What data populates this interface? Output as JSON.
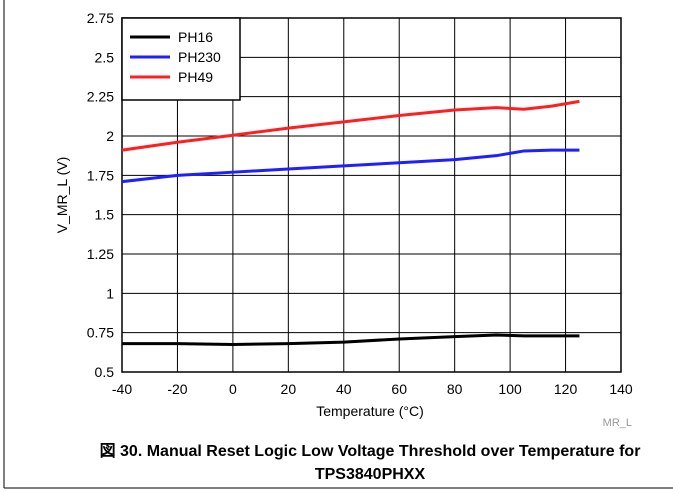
{
  "chart_data": {
    "type": "line",
    "title": "図 30. Manual Reset Logic Low Voltage Threshold over Temperature for TPS3840PHXX",
    "x_label": "Temperature (°C)",
    "y_label": "V_MR_L (V)",
    "annotation": "MR_L",
    "x": [
      -40,
      -20,
      0,
      20,
      40,
      60,
      80,
      95,
      105,
      115,
      125
    ],
    "series": [
      {
        "name": "PH16",
        "color": "#000000",
        "values": [
          0.68,
          0.68,
          0.675,
          0.68,
          0.69,
          0.71,
          0.725,
          0.735,
          0.73,
          0.73,
          0.73
        ]
      },
      {
        "name": "PH230",
        "color": "#1f1fff",
        "values": [
          1.71,
          1.75,
          1.77,
          1.79,
          1.81,
          1.83,
          1.85,
          1.875,
          1.905,
          1.91,
          1.91
        ]
      },
      {
        "name": "PH49",
        "color": "#ff1f1f",
        "values": [
          1.91,
          1.96,
          2.005,
          2.05,
          2.09,
          2.13,
          2.165,
          2.18,
          2.17,
          2.19,
          2.22
        ]
      }
    ],
    "xlim": [
      -40,
      140
    ],
    "xticks": [
      -40,
      -20,
      0,
      20,
      40,
      60,
      80,
      100,
      120,
      140
    ],
    "ylim": [
      0.5,
      2.75
    ],
    "yticks": [
      0.5,
      0.75,
      1,
      1.25,
      1.5,
      1.75,
      2,
      2.25,
      2.5,
      2.75
    ],
    "grid": true,
    "legend": "top-left"
  }
}
